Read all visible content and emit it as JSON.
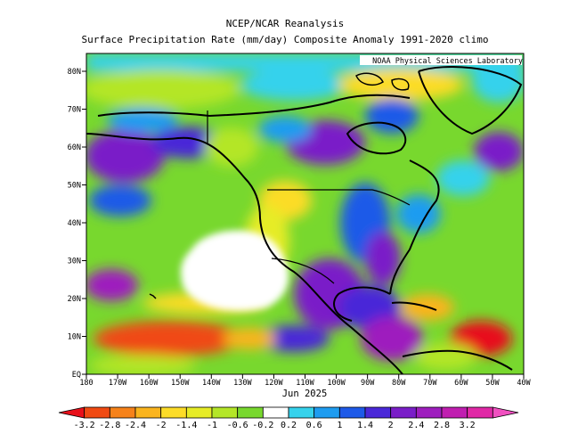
{
  "header": {
    "title": "NCEP/NCAR Reanalysis",
    "subtitle": "Surface Precipitation Rate (mm/day) Composite Anomaly 1991-2020 climo",
    "credit": "NOAA Physical Sciences Laboratory"
  },
  "map": {
    "region": "North Pacific and North America",
    "lat_labels": [
      "EQ",
      "10N",
      "20N",
      "30N",
      "40N",
      "50N",
      "60N",
      "70N",
      "80N"
    ],
    "lon_labels": [
      "180",
      "170W",
      "160W",
      "150W",
      "140W",
      "130W",
      "120W",
      "110W",
      "100W",
      "90W",
      "80W",
      "70W",
      "60W",
      "50W",
      "40W"
    ],
    "date": "Jun 2025"
  },
  "colorbar": {
    "labels": [
      "-3.2",
      "-2.8",
      "-2.4",
      "-2",
      "-1.4",
      "-1",
      "-0.6",
      "-0.2",
      "0.2",
      "0.6",
      "1",
      "1.4",
      "2",
      "2.4",
      "2.8",
      "3.2"
    ],
    "colors": [
      "#e8101a",
      "#f04a12",
      "#f6821a",
      "#fab41e",
      "#fcdc28",
      "#e6ec26",
      "#b4e628",
      "#78d82e",
      "#ffffff",
      "#36d2ec",
      "#1e9cf0",
      "#1e5ae8",
      "#4a28d8",
      "#7a1ec8",
      "#9e1ebe",
      "#c01eb0",
      "#e028a6",
      "#f050c0"
    ]
  }
}
